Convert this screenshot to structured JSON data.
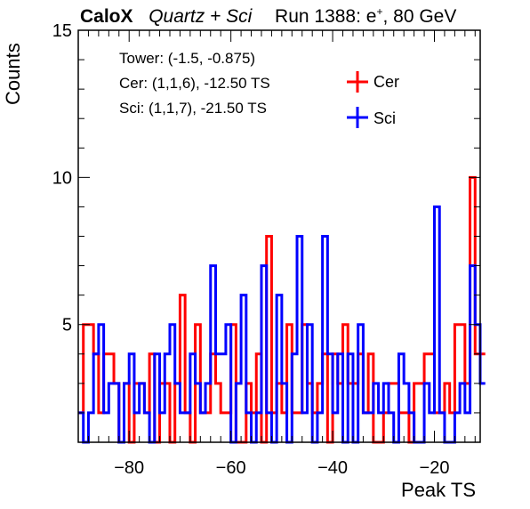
{
  "header": {
    "experiment": "CaloX",
    "detector": "Quartz + Sci",
    "run": "Run 1388: e",
    "charge": "+",
    "energy": ", 80 GeV"
  },
  "info": {
    "tower": "Tower: (-1.5, -0.875)",
    "cer": "Cer: (1,1,6), -12.50 TS",
    "sci": "Sci: (1,1,7), -21.50 TS"
  },
  "chart_data": {
    "type": "histogram",
    "xlabel": "Peak TS",
    "ylabel": "Counts",
    "xlim": [
      -90,
      -11
    ],
    "ylim": [
      1,
      15
    ],
    "x_tick_labels": [
      -80,
      -60,
      -40,
      -20
    ],
    "y_tick_labels": [
      5,
      10,
      15
    ],
    "bin_width": 1,
    "x_start": -90,
    "legend": {
      "placement": "top-right"
    },
    "series": [
      {
        "name": "Cer",
        "color": "#ff0000",
        "values": [
          2,
          5,
          5,
          4,
          2,
          4,
          4,
          3,
          1,
          3,
          1,
          3,
          3,
          2,
          4,
          1,
          3,
          3,
          1,
          3,
          6,
          2,
          1,
          5,
          2,
          2,
          4,
          3,
          2,
          2,
          5,
          1,
          1,
          3,
          2,
          4,
          1,
          8,
          2,
          3,
          2,
          5,
          2,
          2,
          5,
          3,
          2,
          3,
          4,
          1,
          4,
          3,
          5,
          3,
          3,
          4,
          2,
          4,
          1,
          1,
          2,
          3,
          3,
          2,
          2,
          1,
          3,
          3,
          4,
          4,
          2,
          2,
          3,
          2,
          5,
          5,
          3,
          10,
          4,
          4
        ]
      },
      {
        "name": "Sci",
        "color": "#0000ff",
        "values": [
          2,
          1,
          2,
          4,
          5,
          2,
          3,
          3,
          1,
          3,
          4,
          2,
          3,
          2,
          1,
          4,
          2,
          4,
          5,
          3,
          2,
          2,
          4,
          3,
          2,
          3,
          7,
          4,
          4,
          5,
          1,
          3,
          6,
          2,
          1,
          2,
          7,
          2,
          1,
          6,
          3,
          1,
          4,
          8,
          2,
          5,
          1,
          2,
          8,
          4,
          2,
          4,
          1,
          4,
          1,
          5,
          2,
          2,
          3,
          2,
          3,
          2,
          1,
          4,
          3,
          2,
          1,
          1,
          3,
          2,
          9,
          2,
          1,
          1,
          2,
          3,
          2,
          7,
          5,
          3
        ]
      }
    ]
  }
}
